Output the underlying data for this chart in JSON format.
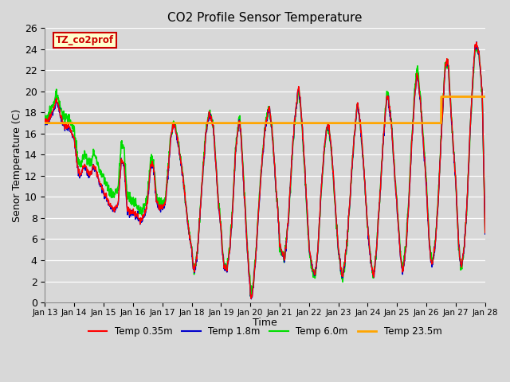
{
  "title": "CO2 Profile Sensor Temperature",
  "xlabel": "Time",
  "ylabel": "Senor Temperature (C)",
  "annotation_label": "TZ_co2prof",
  "ylim": [
    0,
    26
  ],
  "yticks": [
    0,
    2,
    4,
    6,
    8,
    10,
    12,
    14,
    16,
    18,
    20,
    22,
    24,
    26
  ],
  "xtick_labels": [
    "Jan 13",
    "Jan 14",
    "Jan 15",
    "Jan 16",
    "Jan 17",
    "Jan 18",
    "Jan 19",
    "Jan 20",
    "Jan 21",
    "Jan 22",
    "Jan 23",
    "Jan 24",
    "Jan 25",
    "Jan 26",
    "Jan 27",
    "Jan 28"
  ],
  "line_colors": {
    "temp_035m": "#ff0000",
    "temp_18m": "#0000cc",
    "temp_60m": "#00dd00",
    "temp_235m": "#ffa500"
  },
  "line_widths": {
    "temp_035m": 1.0,
    "temp_18m": 1.0,
    "temp_60m": 1.2,
    "temp_235m": 2.0
  },
  "legend_labels": [
    "Temp 0.35m",
    "Temp 1.8m",
    "Temp 6.0m",
    "Temp 23.5m"
  ],
  "background_color": "#d8d8d8",
  "plot_bg_color": "#d8d8d8",
  "annotation_box_facecolor": "#ffffcc",
  "annotation_box_edgecolor": "#cc0000",
  "annotation_text_color": "#cc0000",
  "figsize": [
    6.4,
    4.8
  ],
  "dpi": 100
}
